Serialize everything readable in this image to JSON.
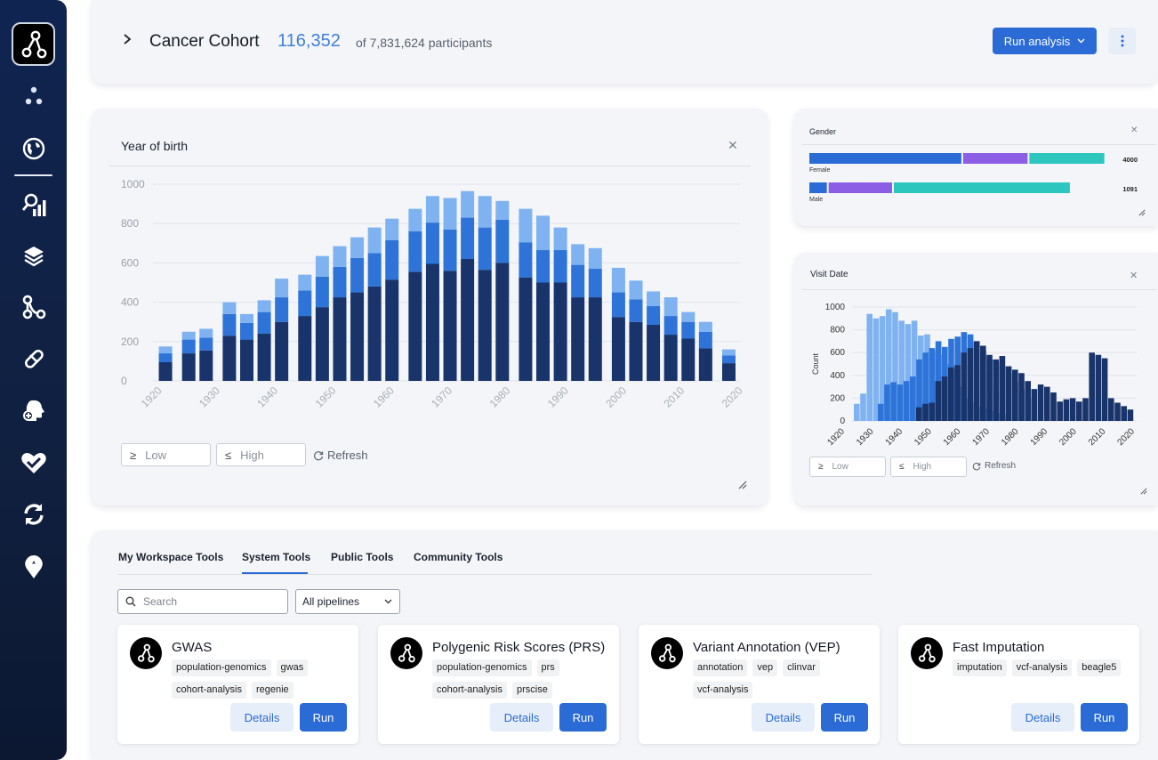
{
  "header": {
    "title": "Cancer Cohort",
    "count": "116,352",
    "of_text": "of 7,831,624 participants",
    "run_label": "Run analysis"
  },
  "colors": {
    "light": "#7fb2f0",
    "mid": "#2e74d8",
    "dark": "#18346b",
    "purple": "#8c5ee6",
    "teal": "#2cc6bf",
    "accent": "#2a6bd6"
  },
  "yob": {
    "title": "Year of birth",
    "low_placeholder": "Low",
    "high_placeholder": "High",
    "refresh": "Refresh",
    "low_sym": "≥",
    "high_sym": "≤"
  },
  "gender": {
    "title": "Gender",
    "rows": [
      {
        "label": "Female",
        "value": "4000",
        "segments": [
          {
            "color": "blue",
            "value": 0.455
          },
          {
            "color": "purple",
            "value": 0.196
          },
          {
            "color": "teal",
            "value": 0.227
          }
        ]
      },
      {
        "label": "Male",
        "value": "1091",
        "segments": [
          {
            "color": "blue",
            "value": 0.057
          },
          {
            "color": "purple",
            "value": 0.193
          },
          {
            "color": "teal",
            "value": 0.526
          }
        ]
      }
    ]
  },
  "visit": {
    "title": "Visit Date",
    "low_placeholder": "Low",
    "high_placeholder": "High",
    "refresh": "Refresh"
  },
  "tools": {
    "tabs": [
      "My Workspace Tools",
      "System Tools",
      "Public Tools",
      "Community Tools"
    ],
    "active_tab": 1,
    "search_placeholder": "Search",
    "pipeline_select": "All pipelines",
    "details_label": "Details",
    "run_label": "Run",
    "cards": [
      {
        "name": "GWAS",
        "tags": [
          "population-genomics",
          "gwas",
          "cohort-analysis",
          "regenie"
        ]
      },
      {
        "name": "Polygenic Risk Scores (PRS)",
        "tags": [
          "population-genomics",
          "prs",
          "cohort-analysis",
          "prscise"
        ]
      },
      {
        "name": "Variant Annotation (VEP)",
        "tags": [
          "annotation",
          "vep",
          "clinvar",
          "vcf-analysis"
        ]
      },
      {
        "name": "Fast Imputation",
        "tags": [
          "imputation",
          "vcf-analysis",
          "beagle5"
        ]
      }
    ]
  },
  "chart_data": [
    {
      "type": "bar",
      "title": "Year of birth",
      "stacked": true,
      "x": [
        1922,
        1926,
        1929,
        1933,
        1936,
        1939,
        1942,
        1946,
        1949,
        1952,
        1955,
        1958,
        1961,
        1965,
        1968,
        1971,
        1974,
        1977,
        1980,
        1984,
        1987,
        1990,
        1993,
        1996,
        2000,
        2003,
        2006,
        2009,
        2012,
        2015,
        2019
      ],
      "xticks": [
        "1920",
        "1930",
        "1940",
        "1950",
        "1960",
        "1970",
        "1980",
        "1990",
        "2000",
        "2010",
        "2020"
      ],
      "ylim": [
        0,
        1000
      ],
      "yticks": [
        0,
        200,
        400,
        600,
        800,
        1000
      ],
      "grid": true,
      "series": [
        {
          "values": [
            95,
            140,
            155,
            230,
            210,
            240,
            300,
            330,
            375,
            425,
            450,
            480,
            515,
            555,
            595,
            560,
            620,
            565,
            600,
            525,
            500,
            500,
            425,
            425,
            325,
            300,
            285,
            235,
            215,
            165,
            90
          ]
        },
        {
          "values": [
            45,
            70,
            65,
            110,
            85,
            110,
            125,
            130,
            155,
            155,
            175,
            170,
            200,
            205,
            210,
            210,
            210,
            215,
            220,
            180,
            165,
            165,
            165,
            145,
            125,
            115,
            95,
            95,
            85,
            85,
            40
          ]
        },
        {
          "values": [
            35,
            40,
            45,
            60,
            45,
            60,
            95,
            80,
            105,
            105,
            105,
            130,
            110,
            115,
            135,
            160,
            135,
            160,
            95,
            170,
            175,
            115,
            105,
            105,
            125,
            95,
            75,
            95,
            50,
            50,
            30
          ]
        }
      ]
    },
    {
      "type": "bar",
      "title": "Visit Date",
      "ylabel": "Count",
      "stacked": false,
      "xticks": [
        "1920",
        "1930",
        "1940",
        "1950",
        "1960",
        "1970",
        "1980",
        "1990",
        "2000",
        "2010",
        "2020"
      ],
      "ylim": [
        0,
        1000
      ],
      "yticks": [
        0,
        200,
        400,
        600,
        800,
        1000
      ],
      "grid": true,
      "series": [
        {
          "values": [
            150,
            240,
            940,
            900,
            920,
            980,
            955,
            880,
            850,
            880,
            750,
            760,
            620,
            580,
            500,
            450,
            300,
            200,
            160,
            130,
            110,
            90,
            70,
            60
          ]
        },
        {
          "values": [
            150,
            320,
            340,
            320,
            350,
            390,
            540,
            600,
            640,
            700,
            650,
            720,
            740,
            780,
            760,
            700,
            620,
            540,
            520,
            480,
            420,
            350,
            280,
            200
          ]
        },
        {
          "values": [
            120,
            150,
            160,
            350,
            390,
            470,
            490,
            600,
            640,
            700,
            660,
            580,
            540,
            570,
            480,
            450,
            420,
            350,
            280,
            320,
            300,
            250,
            170,
            190,
            200,
            170,
            200,
            600,
            580,
            550,
            200,
            160,
            130,
            100
          ]
        }
      ]
    }
  ]
}
